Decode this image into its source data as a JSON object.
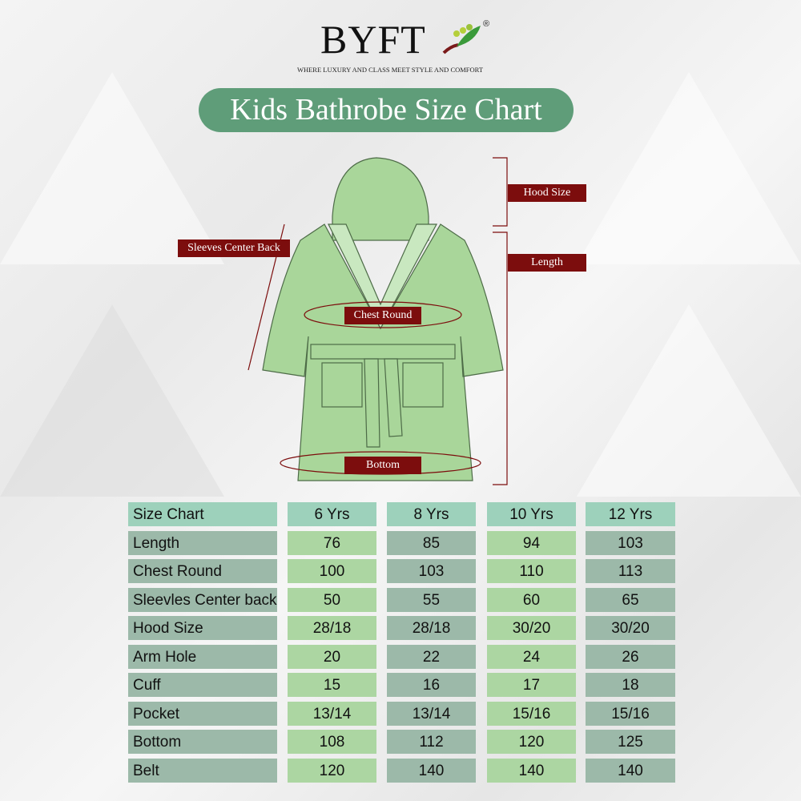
{
  "brand": {
    "name": "BYFT",
    "registered": "®",
    "tagline": "WHERE LUXURY AND CLASS MEET STYLE AND COMFORT"
  },
  "title": "Kids Bathrobe Size Chart",
  "diagram_labels": {
    "hood": "Hood Size",
    "length": "Length",
    "sleeves": "Sleeves Center Back",
    "chest": "Chest Round",
    "bottom": "Bottom"
  },
  "colors": {
    "title_bg": "#5f9d79",
    "label_bg": "#7c0d0d",
    "robe": "#a9d69a",
    "header_cell": "#9dd1bb",
    "grey_cell": "#9cb9a9",
    "light_cell": "#acd6a2"
  },
  "table": {
    "headers": [
      "Size Chart",
      "6 Yrs",
      "8 Yrs",
      "10 Yrs",
      "12 Yrs"
    ],
    "rows": [
      [
        "Length",
        "76",
        "85",
        "94",
        "103"
      ],
      [
        "Chest Round",
        "100",
        "103",
        "110",
        "113"
      ],
      [
        "Sleevles Center back",
        "50",
        "55",
        "60",
        "65"
      ],
      [
        "Hood Size",
        "28/18",
        "28/18",
        "30/20",
        "30/20"
      ],
      [
        "Arm Hole",
        "20",
        "22",
        "24",
        "26"
      ],
      [
        "Cuff",
        "15",
        "16",
        "17",
        "18"
      ],
      [
        "Pocket",
        "13/14",
        "13/14",
        "15/16",
        "15/16"
      ],
      [
        "Bottom",
        "108",
        "112",
        "120",
        "125"
      ],
      [
        "Belt",
        "120",
        "140",
        "140",
        "140"
      ]
    ]
  }
}
